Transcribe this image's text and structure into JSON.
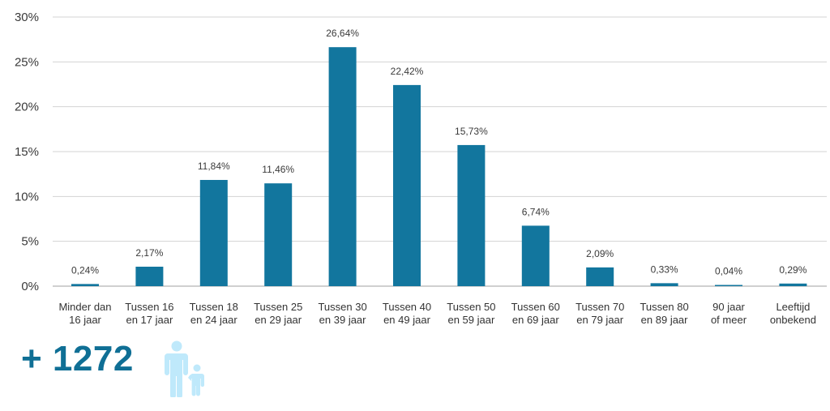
{
  "chart_data": {
    "type": "bar",
    "categories": [
      [
        "Minder dan",
        "16 jaar"
      ],
      [
        "Tussen 16",
        "en 17 jaar"
      ],
      [
        "Tussen 18",
        "en 24 jaar"
      ],
      [
        "Tussen 25",
        "en 29 jaar"
      ],
      [
        "Tussen 30",
        "en 39 jaar"
      ],
      [
        "Tussen 40",
        "en 49 jaar"
      ],
      [
        "Tussen 50",
        "en 59 jaar"
      ],
      [
        "Tussen 60",
        "en 69 jaar"
      ],
      [
        "Tussen 70",
        "en 79 jaar"
      ],
      [
        "Tussen 80",
        "en 89 jaar"
      ],
      [
        "90 jaar",
        "of meer"
      ],
      [
        "Leeftijd",
        "onbekend"
      ]
    ],
    "values": [
      0.24,
      2.17,
      11.84,
      11.46,
      26.64,
      22.42,
      15.73,
      6.74,
      2.09,
      0.33,
      0.04,
      0.29
    ],
    "value_labels": [
      "0,24%",
      "2,17%",
      "11,84%",
      "11,46%",
      "26,64%",
      "22,42%",
      "15,73%",
      "6,74%",
      "2,09%",
      "0,33%",
      "0,04%",
      "0,29%"
    ],
    "y_ticks": [
      0,
      5,
      10,
      15,
      20,
      25,
      30
    ],
    "y_tick_labels": [
      "0%",
      "5%",
      "10%",
      "15%",
      "20%",
      "25%",
      "30%"
    ],
    "ylim": [
      0,
      30
    ],
    "grid": true,
    "bar_color": "#12769e"
  },
  "summary": {
    "total_text": "+ 1272",
    "icon": "adult-and-child-icon",
    "icon_color": "#bfe9fb",
    "text_color": "#0f6f95"
  }
}
